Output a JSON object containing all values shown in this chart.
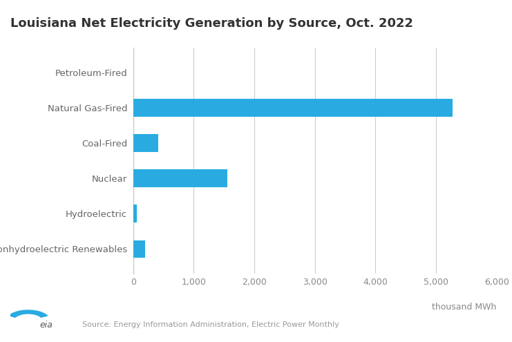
{
  "title": "Louisiana Net Electricity Generation by Source, Oct. 2022",
  "categories": [
    "Petroleum-Fired",
    "Natural Gas-Fired",
    "Coal-Fired",
    "Nuclear",
    "Hydroelectric",
    "Nonhydroelectric Renewables"
  ],
  "values": [
    5,
    5270,
    410,
    1560,
    60,
    200
  ],
  "bar_color": "#29ABE2",
  "xlabel": "thousand MWh",
  "xlim": [
    0,
    6000
  ],
  "xticks": [
    0,
    1000,
    2000,
    3000,
    4000,
    5000,
    6000
  ],
  "xtick_labels": [
    "0",
    "1,000",
    "2,000",
    "3,000",
    "4,000",
    "5,000",
    "6,000"
  ],
  "source_text": "Source: Energy Information Administration, Electric Power Monthly",
  "title_fontsize": 13,
  "label_fontsize": 9.5,
  "tick_fontsize": 9,
  "source_fontsize": 8,
  "background_color": "#ffffff",
  "grid_color": "#cccccc",
  "bar_height": 0.5,
  "label_color": "#666666",
  "tick_color": "#888888",
  "title_color": "#333333",
  "spine_color": "#cccccc"
}
